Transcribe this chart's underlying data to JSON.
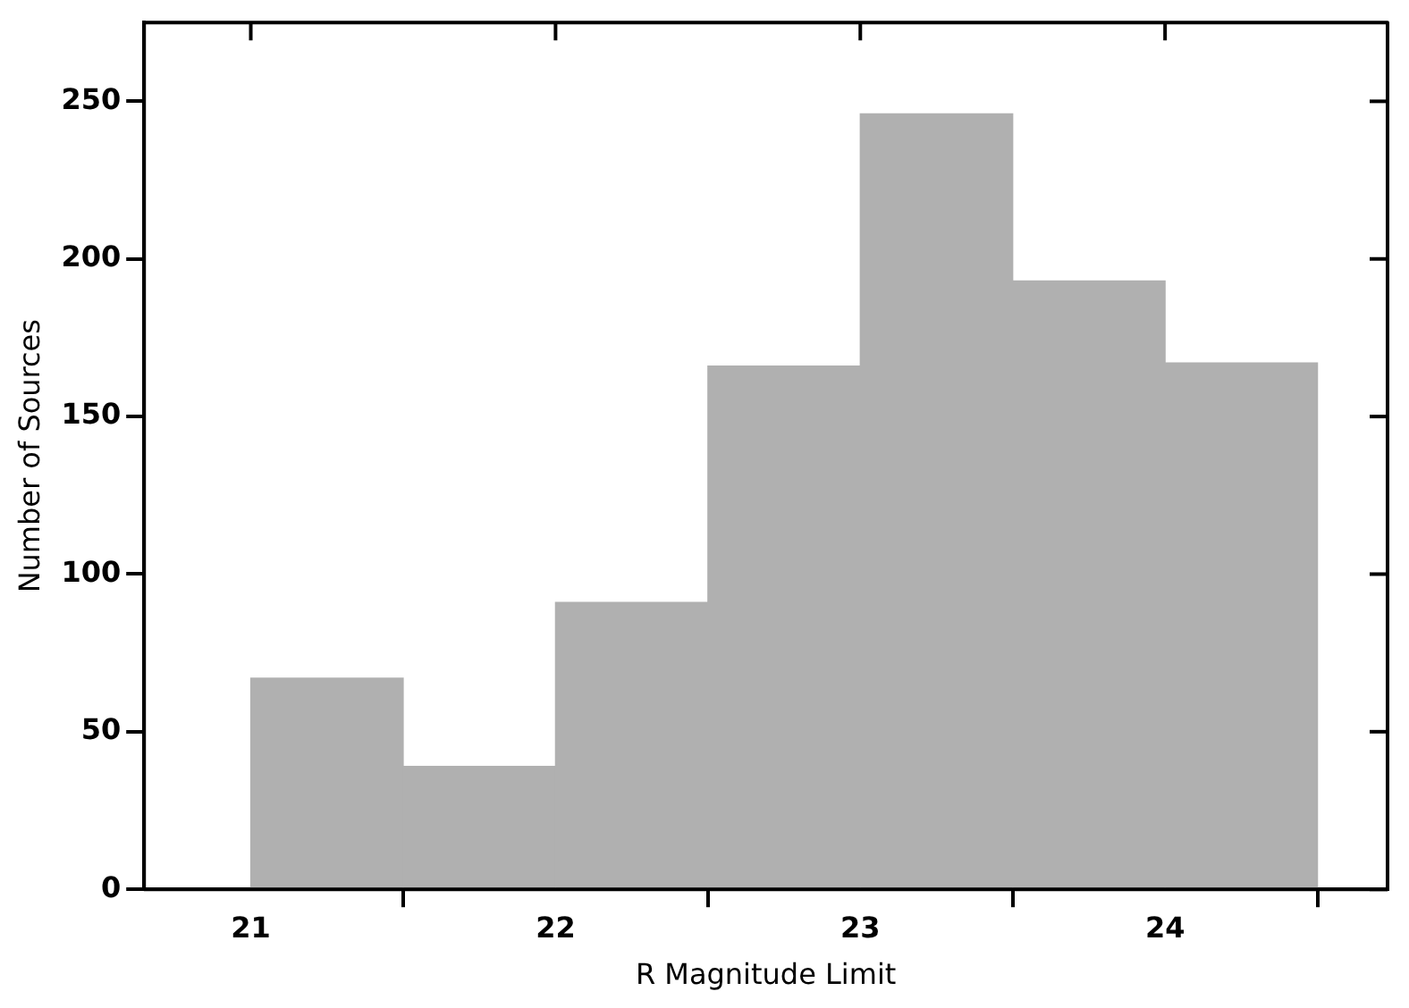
{
  "chart_data": {
    "type": "histogram",
    "xlabel": "R Magnitude Limit",
    "ylabel": "Number of Sources",
    "bins": [
      21,
      21.5,
      22,
      22.5,
      23,
      23.5,
      24,
      24.5
    ],
    "values": [
      67,
      39,
      91,
      166,
      246,
      193,
      167
    ],
    "color": "#b0b0b0",
    "xlim": [
      20.65,
      24.73
    ],
    "xticks": [
      21,
      22,
      23,
      24
    ],
    "ylim": [
      0,
      275
    ],
    "yticks": [
      0,
      50,
      100,
      150,
      200,
      250
    ],
    "grid": false,
    "legend": false
  }
}
